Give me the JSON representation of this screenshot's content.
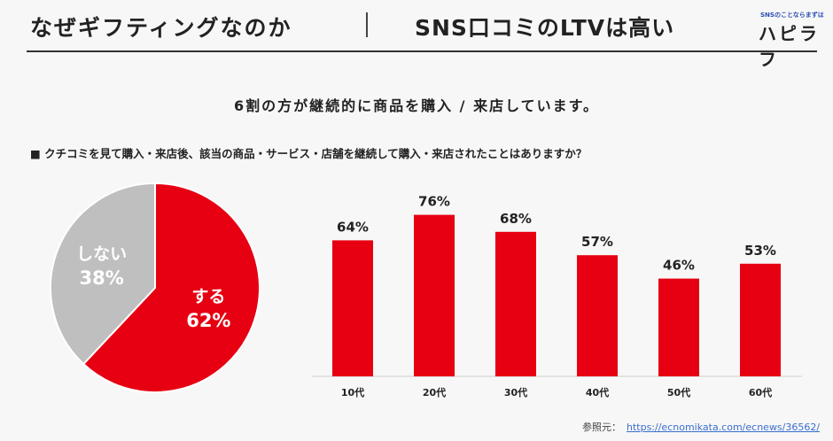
{
  "header": {
    "title_left": "なぜギフティングなのか",
    "title_right": "SNS口コミのLTVは高い",
    "logo_tagline": "SNSのことならまずは",
    "logo": "ハピラフ"
  },
  "subtitle": "6割の方が継続的に商品を購入 / 来店しています。",
  "question": "■ クチコミを見て購入・来店後、該当の商品・サービス・店舗を継続して購入・来店されたことはありますか？",
  "reference": {
    "label": "参照元：",
    "url": "https://ecnomikata.com/ecnews/36562/"
  },
  "colors": {
    "red": "#e60012",
    "gray": "#bfbfbf"
  },
  "chart_data": [
    {
      "type": "pie",
      "slices": [
        {
          "label": "する",
          "value": 62,
          "display": "62%",
          "color": "#e60012"
        },
        {
          "label": "しない",
          "value": 38,
          "display": "38%",
          "color": "#bfbfbf"
        }
      ]
    },
    {
      "type": "bar",
      "categories": [
        "10代",
        "20代",
        "30代",
        "40代",
        "50代",
        "60代"
      ],
      "values": [
        64,
        76,
        68,
        57,
        46,
        53
      ],
      "labels": [
        "64%",
        "76%",
        "68%",
        "57%",
        "46%",
        "53%"
      ],
      "color": "#e60012"
    }
  ]
}
